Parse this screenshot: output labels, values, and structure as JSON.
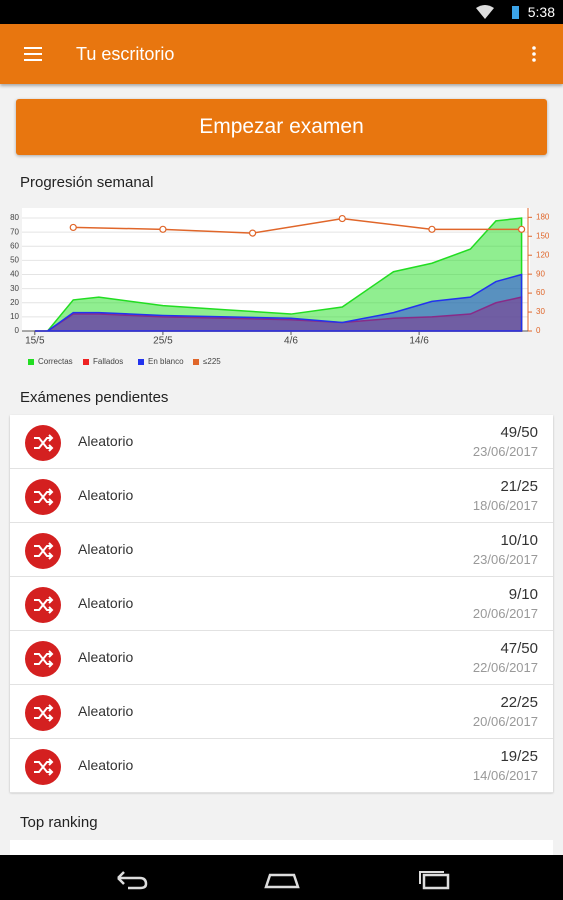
{
  "status_bar": {
    "time": "5:38"
  },
  "app_bar": {
    "title": "Tu escritorio"
  },
  "start_button": "Empezar examen",
  "weekly_section": {
    "title": "Progresión semanal"
  },
  "chart_data": {
    "type": "area",
    "x": [
      0,
      1,
      3,
      5,
      10,
      15,
      20,
      24,
      28,
      31,
      34,
      36,
      38
    ],
    "xlim": [
      -1,
      38.5
    ],
    "xticks": [
      {
        "value": 0,
        "label": "15/5"
      },
      {
        "value": 10,
        "label": "25/5"
      },
      {
        "value": 20,
        "label": "4/6"
      },
      {
        "value": 30,
        "label": "14/6"
      }
    ],
    "ylim": [
      0,
      85
    ],
    "yticks": [
      0,
      10,
      20,
      30,
      40,
      50,
      60,
      70,
      80
    ],
    "y2lim": [
      0,
      190
    ],
    "y2ticks": [
      0,
      30,
      60,
      90,
      120,
      150,
      180
    ],
    "grid": true,
    "series": [
      {
        "name": "Correctas",
        "color": "#22dd22",
        "values": [
          0,
          0,
          22,
          24,
          18,
          15,
          12,
          17,
          42,
          48,
          58,
          78,
          80
        ]
      },
      {
        "name": "Fallados",
        "color": "#ee2222",
        "values": [
          0,
          0,
          12,
          12,
          10,
          9,
          8,
          6,
          9,
          10,
          12,
          20,
          24
        ]
      },
      {
        "name": "En blanco",
        "color": "#2233ee",
        "values": [
          0,
          0,
          13,
          13,
          11,
          10,
          9,
          6,
          13,
          21,
          24,
          35,
          40
        ]
      },
      {
        "name": "≤225",
        "color": "#e0662a",
        "axis": "y2",
        "x": [
          3,
          10,
          17,
          24,
          31,
          38
        ],
        "values": [
          164,
          161,
          155,
          178,
          161,
          161
        ]
      }
    ]
  },
  "pending": {
    "title": "Exámenes pendientes",
    "exams": [
      {
        "name": "Aleatorio",
        "score": "49/50",
        "date": "23/06/2017"
      },
      {
        "name": "Aleatorio",
        "score": "21/25",
        "date": "18/06/2017"
      },
      {
        "name": "Aleatorio",
        "score": "10/10",
        "date": "23/06/2017"
      },
      {
        "name": "Aleatorio",
        "score": "9/10",
        "date": "20/06/2017"
      },
      {
        "name": "Aleatorio",
        "score": "47/50",
        "date": "22/06/2017"
      },
      {
        "name": "Aleatorio",
        "score": "22/25",
        "date": "20/06/2017"
      },
      {
        "name": "Aleatorio",
        "score": "19/25",
        "date": "14/06/2017"
      }
    ]
  },
  "ranking": {
    "title": "Top ranking"
  }
}
